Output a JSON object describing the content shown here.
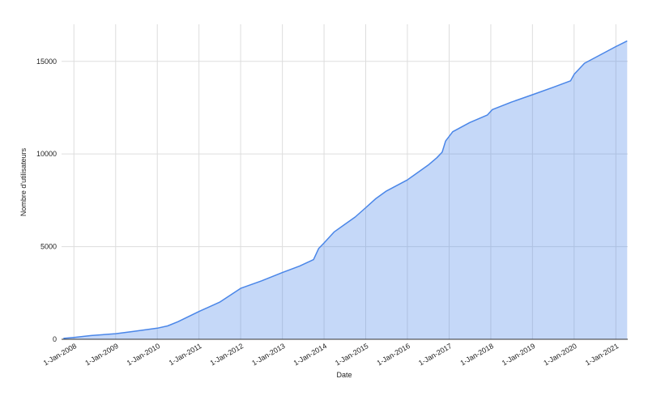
{
  "chart_data": {
    "type": "area",
    "x_label": "Date",
    "y_label": "Nombre d'utilisateurs",
    "x": [
      "2007-10-01",
      "2008-01-01",
      "2008-06-01",
      "2009-01-01",
      "2009-06-01",
      "2010-01-01",
      "2010-04-01",
      "2010-07-01",
      "2011-01-01",
      "2011-07-01",
      "2012-01-01",
      "2012-07-01",
      "2013-01-01",
      "2013-06-01",
      "2013-10-01",
      "2013-11-15",
      "2014-01-01",
      "2014-04-01",
      "2014-07-01",
      "2014-10-01",
      "2015-01-01",
      "2015-04-01",
      "2015-07-01",
      "2016-01-01",
      "2016-07-01",
      "2016-09-15",
      "2016-11-01",
      "2016-12-01",
      "2017-02-01",
      "2017-07-01",
      "2017-12-01",
      "2018-01-15",
      "2018-07-01",
      "2019-01-01",
      "2019-07-01",
      "2019-12-01",
      "2020-01-01",
      "2020-04-01",
      "2020-09-01",
      "2021-01-01",
      "2021-04-10"
    ],
    "series": [
      {
        "color": "#4a86e8",
        "values": [
          50,
          100,
          200,
          300,
          420,
          600,
          720,
          950,
          1500,
          2000,
          2750,
          3150,
          3600,
          3950,
          4300,
          4900,
          5200,
          5800,
          6200,
          6600,
          7100,
          7600,
          8000,
          8600,
          9400,
          9800,
          10100,
          10700,
          11200,
          11700,
          12100,
          12400,
          12800,
          13200,
          13600,
          13950,
          14300,
          14900,
          15400,
          15800,
          16100
        ]
      }
    ],
    "xlim": [
      "2007-09-15",
      "2021-04-15"
    ],
    "xticks": [
      {
        "value": "2008-01-01",
        "label": "1-Jan-2008"
      },
      {
        "value": "2009-01-01",
        "label": "1-Jan-2009"
      },
      {
        "value": "2010-01-01",
        "label": "1-Jan-2010"
      },
      {
        "value": "2011-01-01",
        "label": "1-Jan-2011"
      },
      {
        "value": "2012-01-01",
        "label": "1-Jan-2012"
      },
      {
        "value": "2013-01-01",
        "label": "1-Jan-2013"
      },
      {
        "value": "2014-01-01",
        "label": "1-Jan-2014"
      },
      {
        "value": "2015-01-01",
        "label": "1-Jan-2015"
      },
      {
        "value": "2016-01-01",
        "label": "1-Jan-2016"
      },
      {
        "value": "2017-01-01",
        "label": "1-Jan-2017"
      },
      {
        "value": "2018-01-01",
        "label": "1-Jan-2018"
      },
      {
        "value": "2019-01-01",
        "label": "1-Jan-2019"
      },
      {
        "value": "2020-01-01",
        "label": "1-Jan-2020"
      },
      {
        "value": "2021-01-01",
        "label": "1-Jan-2021"
      }
    ],
    "ylim": [
      0,
      17000
    ],
    "yticks": [
      0,
      5000,
      10000,
      15000
    ],
    "grid": true
  }
}
